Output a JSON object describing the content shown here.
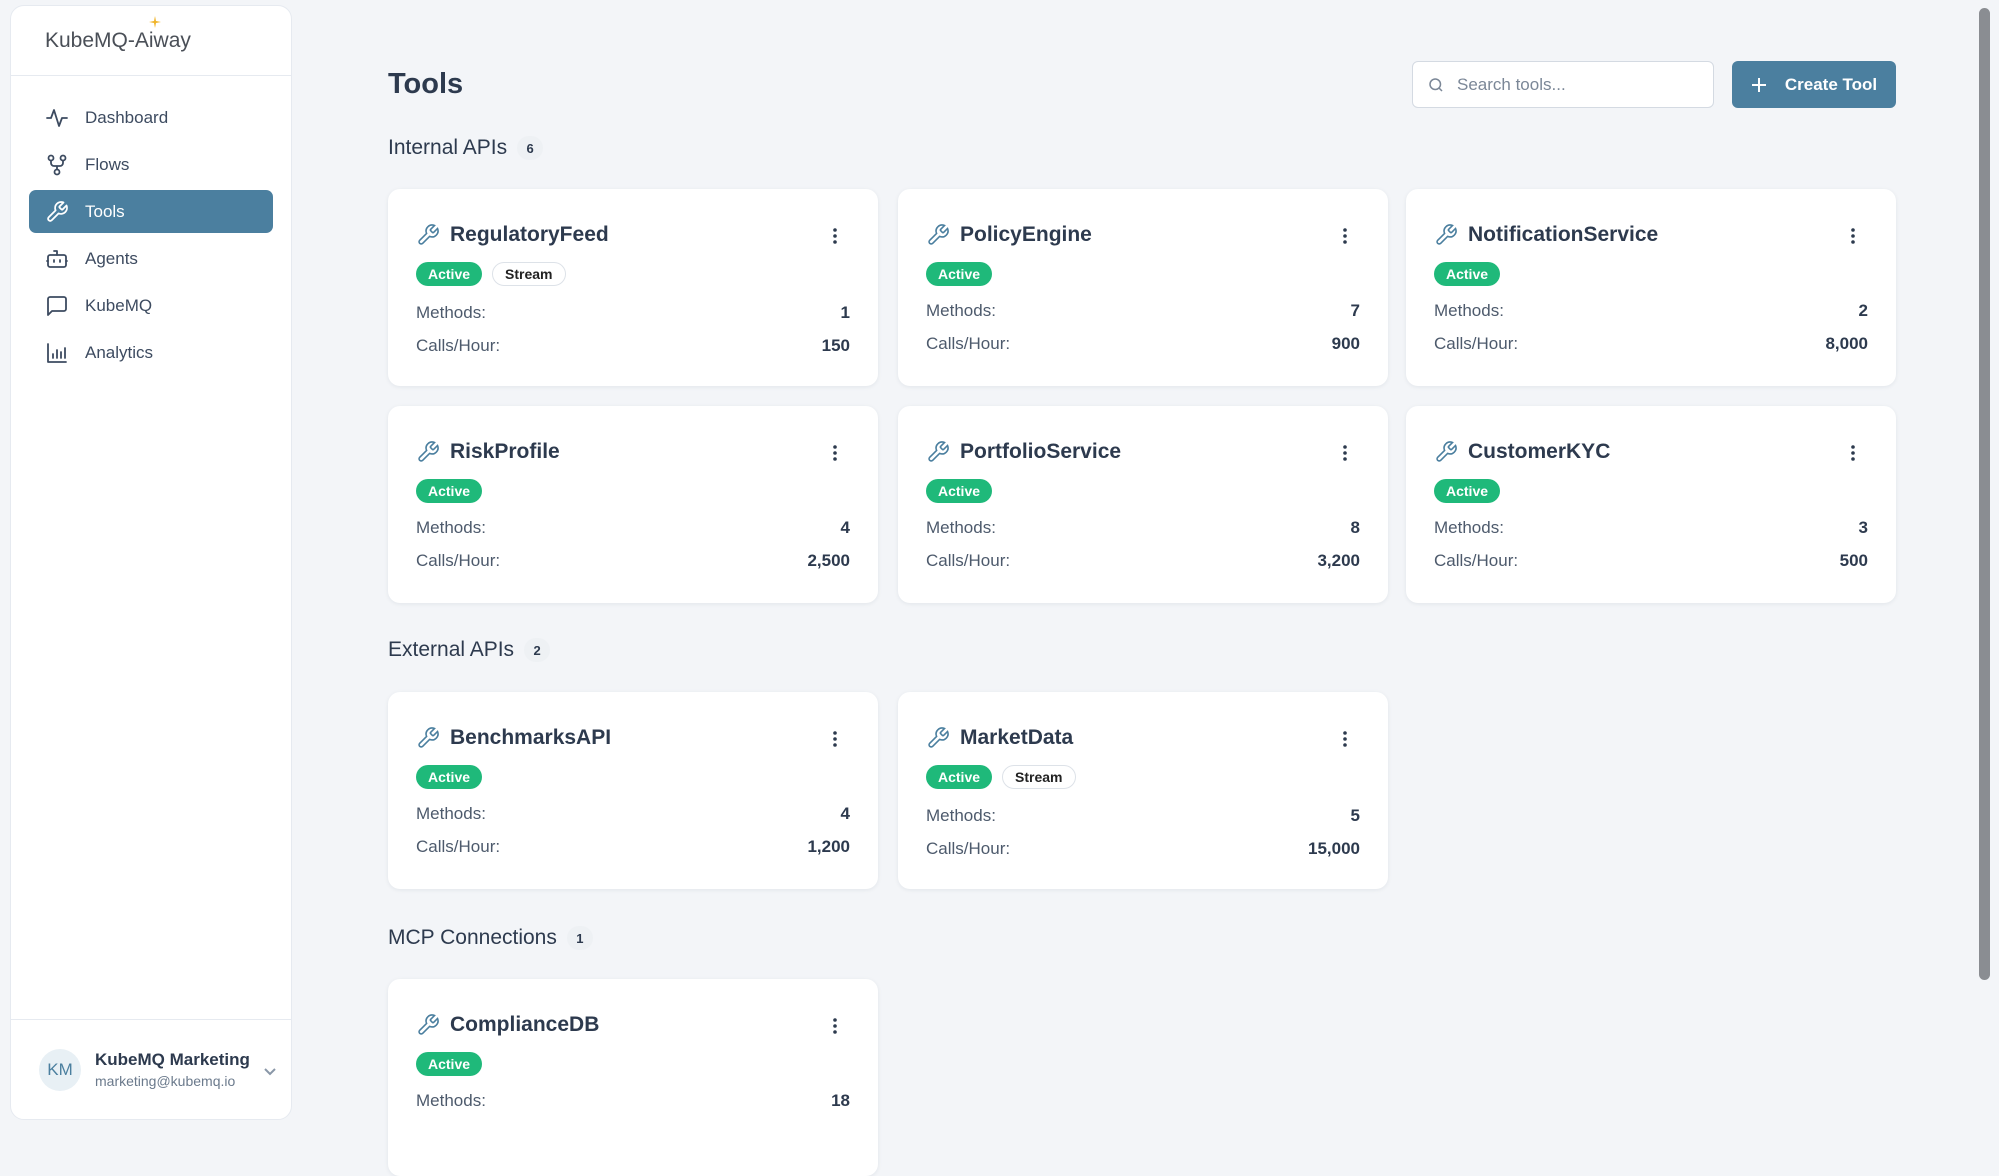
{
  "app": {
    "logo": "KubeMQ-Aiway"
  },
  "sidebar": {
    "items": [
      {
        "label": "Dashboard",
        "icon": "activity-icon"
      },
      {
        "label": "Flows",
        "icon": "flows-icon"
      },
      {
        "label": "Tools",
        "icon": "wrench-icon",
        "active": true
      },
      {
        "label": "Agents",
        "icon": "bot-icon"
      },
      {
        "label": "KubeMQ",
        "icon": "message-icon"
      },
      {
        "label": "Analytics",
        "icon": "bar-chart-icon"
      }
    ],
    "user": {
      "initials": "KM",
      "name": "KubeMQ Marketing",
      "email": "marketing@kubemq.io"
    }
  },
  "header": {
    "title": "Tools",
    "search_placeholder": "Search tools...",
    "create_label": "Create Tool"
  },
  "labels": {
    "methods": "Methods:",
    "calls": "Calls/Hour:"
  },
  "sections": [
    {
      "title": "Internal APIs",
      "count": "6",
      "tools": [
        {
          "name": "RegulatoryFeed",
          "status": "Active",
          "tag": "Stream",
          "methods": "1",
          "calls": "150"
        },
        {
          "name": "PolicyEngine",
          "status": "Active",
          "methods": "7",
          "calls": "900"
        },
        {
          "name": "NotificationService",
          "status": "Active",
          "methods": "2",
          "calls": "8,000"
        },
        {
          "name": "RiskProfile",
          "status": "Active",
          "methods": "4",
          "calls": "2,500"
        },
        {
          "name": "PortfolioService",
          "status": "Active",
          "methods": "8",
          "calls": "3,200"
        },
        {
          "name": "CustomerKYC",
          "status": "Active",
          "methods": "3",
          "calls": "500"
        }
      ]
    },
    {
      "title": "External APIs",
      "count": "2",
      "tools": [
        {
          "name": "BenchmarksAPI",
          "status": "Active",
          "methods": "4",
          "calls": "1,200"
        },
        {
          "name": "MarketData",
          "status": "Active",
          "tag": "Stream",
          "methods": "5",
          "calls": "15,000"
        }
      ]
    },
    {
      "title": "MCP Connections",
      "count": "1",
      "tools": [
        {
          "name": "ComplianceDB",
          "status": "Active",
          "methods": "18"
        }
      ]
    }
  ],
  "colors": {
    "accent": "#4b7f9f",
    "active": "#1fb97a"
  }
}
